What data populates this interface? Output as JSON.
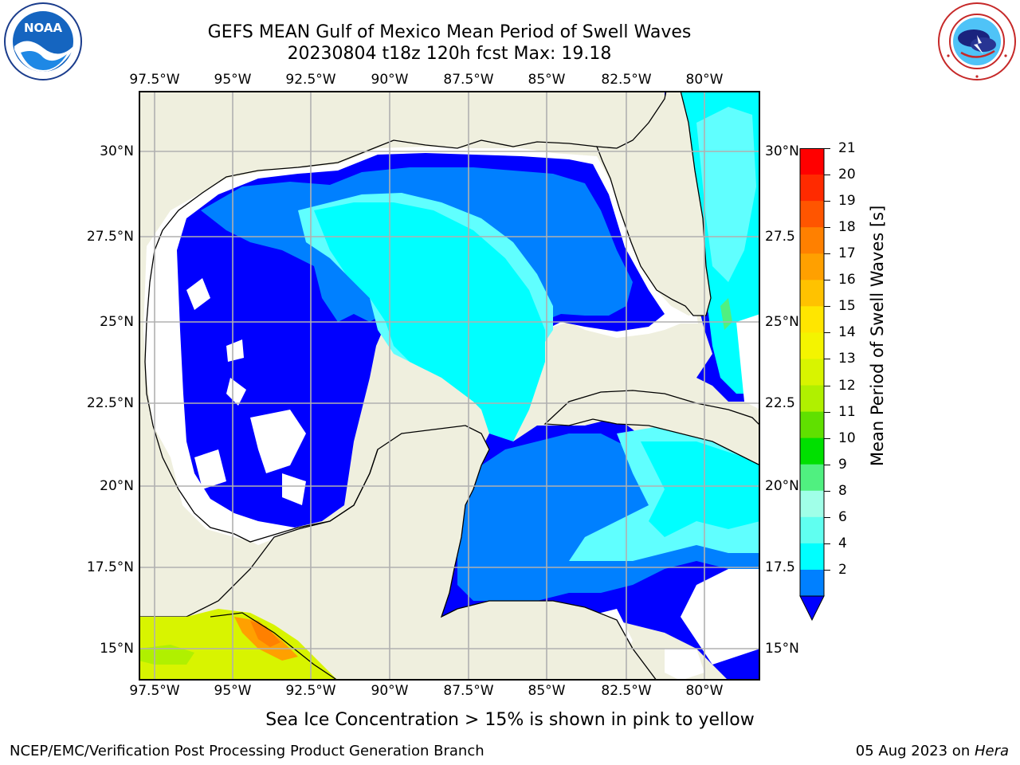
{
  "title": "GEFS MEAN Gulf of Mexico Mean Period of Swell Waves",
  "subtitle": "20230804 t18z 120h fcst   Max: 19.18",
  "logos": {
    "left": "NOAA",
    "right": "NATIONAL WEATHER SERVICE"
  },
  "map": {
    "lon_labels": [
      "97.5°W",
      "95°W",
      "92.5°W",
      "90°W",
      "87.5°W",
      "85°W",
      "82.5°W",
      "80°W"
    ],
    "lat_labels_left": [
      "30°N",
      "27.5°N",
      "25°N",
      "22.5°N",
      "20°N",
      "17.5°N",
      "15°N"
    ],
    "lat_labels_right": [
      "30°N",
      "27.5",
      "25°N",
      "22.5",
      "20°N",
      "17.5",
      "15°N"
    ],
    "colors": {
      "land": "#efefde",
      "ocean_masked": "#ffffff",
      "grid": "#b0b0b0",
      "coast": "#000000"
    }
  },
  "colorbar": {
    "label": "Mean Period of Swell Waves [s]",
    "ticks": [
      "21",
      "20",
      "19",
      "18",
      "17",
      "16",
      "15",
      "14",
      "13",
      "12",
      "11",
      "10",
      "9",
      "8",
      "6",
      "4",
      "2"
    ],
    "colors_top_to_bottom": [
      "#ff0000",
      "#ff2a00",
      "#ff5500",
      "#ff8000",
      "#ffa000",
      "#ffc200",
      "#ffe600",
      "#f4f400",
      "#d8f400",
      "#b0f000",
      "#60e000",
      "#00e000",
      "#50f080",
      "#a0ffe8",
      "#60fff0",
      "#00ffff",
      "#0080ff"
    ],
    "under_color": "#0000ff"
  },
  "note": "Sea Ice Concentration > 15% is shown in pink to yellow",
  "footer": {
    "left": "NCEP/EMC/Verification Post Processing Product Generation Branch",
    "date": "05 Aug 2023 on ",
    "machine": "Hera"
  }
}
